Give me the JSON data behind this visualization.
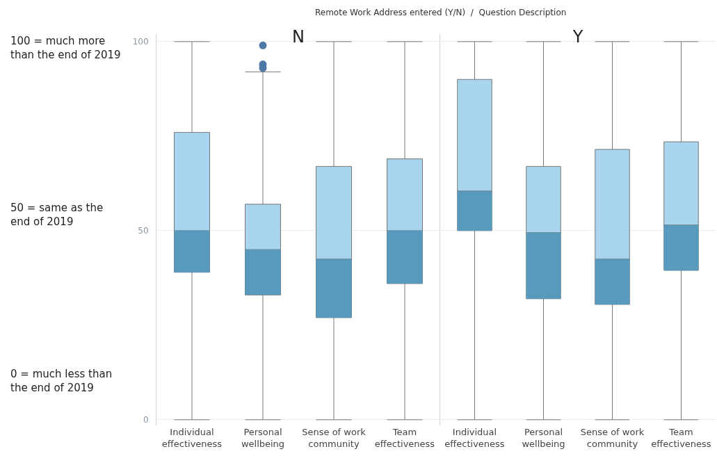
{
  "chart_data": [
    {
      "type": "box",
      "title": "N",
      "categories": [
        "Individual effectiveness",
        "Personal wellbeing",
        "Sense of work community",
        "Team effectiveness"
      ],
      "ylim": [
        -1.5,
        102
      ],
      "yticks": [
        0,
        50,
        100
      ],
      "grid": "y",
      "annotations": [
        "Remote Work Address entered (Y/N)  /  Question Description",
        "100 = much more than the end of 2019",
        "50 = same as the end of 2019",
        "0 = much less than the end of 2019"
      ],
      "series": [
        {
          "color": "#a9d4ee",
          "boxes": [
            {
              "low": 0,
              "q1": 39,
              "median": 50,
              "q3": 76,
              "high": 100
            },
            {
              "low": 0,
              "q1": 33,
              "median": 45,
              "q3": 57,
              "high": 92,
              "outliers": [
                99,
                94,
                93
              ]
            },
            {
              "low": 0,
              "q1": 27,
              "median": 42.5,
              "q3": 67,
              "high": 100
            },
            {
              "low": 0,
              "q1": 36,
              "median": 50,
              "q3": 69,
              "high": 100
            }
          ]
        }
      ]
    },
    {
      "type": "box",
      "title": "Y",
      "categories": [
        "Individual effectiveness",
        "Personal wellbeing",
        "Sense of work community",
        "Team effectiveness"
      ],
      "ylim": [
        -1.5,
        102
      ],
      "yticks": [
        0,
        50,
        100
      ],
      "grid": "y",
      "tick_labels": "x",
      "series": [
        {
          "color": "#a9d4ee",
          "boxes": [
            {
              "low": 0,
              "q1": 50,
              "median": 60.5,
              "q3": 90,
              "high": 100
            },
            {
              "low": 0,
              "q1": 32,
              "median": 49.5,
              "q3": 67,
              "high": 100
            },
            {
              "low": 0,
              "q1": 30.5,
              "median": 42.5,
              "q3": 71.5,
              "high": 100
            },
            {
              "low": 0,
              "q1": 39.5,
              "median": 51.5,
              "q3": 73.5,
              "high": 100
            }
          ]
        }
      ]
    }
  ]
}
